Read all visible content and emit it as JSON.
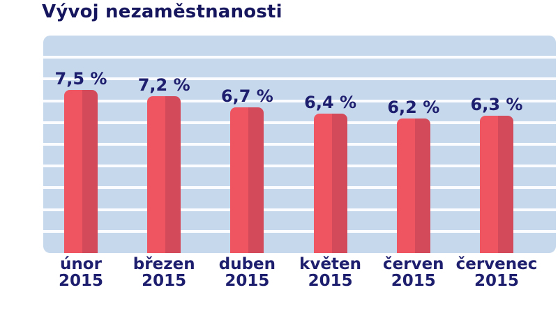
{
  "title": "Vývoj nezaměstnanosti",
  "colors": {
    "title_navy": "#15155e",
    "label_navy": "#1e1e6e",
    "plot_background": "#c6d8ec",
    "gridline_white": "#fafcff",
    "bar_light_red": "#ef5560",
    "bar_dark_red": "#d34b5b",
    "page_background": "#ffffff"
  },
  "chart_data": {
    "type": "bar",
    "title": "Vývoj nezaměstnanosti",
    "categories": [
      "únor 2015",
      "březen 2015",
      "duben 2015",
      "květen 2015",
      "červen 2015",
      "červenec 2015"
    ],
    "values": [
      7.5,
      7.2,
      6.7,
      6.4,
      6.2,
      6.3
    ],
    "value_labels": [
      "7,5 %",
      "7,2 %",
      "6,7 %",
      "6,4 %",
      "6,2 %",
      "6,3 %"
    ],
    "unit": "%",
    "ylim": [
      0,
      10
    ],
    "gridlines": "horizontal white lines every 1 percentage point, no tick labels",
    "legend": "none",
    "xlabel": "",
    "ylabel": "",
    "bars": [
      {
        "month": "únor",
        "year": "2015",
        "value": 7.5,
        "label": "7,5 %"
      },
      {
        "month": "březen",
        "year": "2015",
        "value": 7.2,
        "label": "7,2 %"
      },
      {
        "month": "duben",
        "year": "2015",
        "value": 6.7,
        "label": "6,7 %"
      },
      {
        "month": "květen",
        "year": "2015",
        "value": 6.4,
        "label": "6,4 %"
      },
      {
        "month": "červen",
        "year": "2015",
        "value": 6.2,
        "label": "6,2 %"
      },
      {
        "month": "červenec",
        "year": "2015",
        "value": 6.3,
        "label": "6,3 %"
      }
    ]
  }
}
